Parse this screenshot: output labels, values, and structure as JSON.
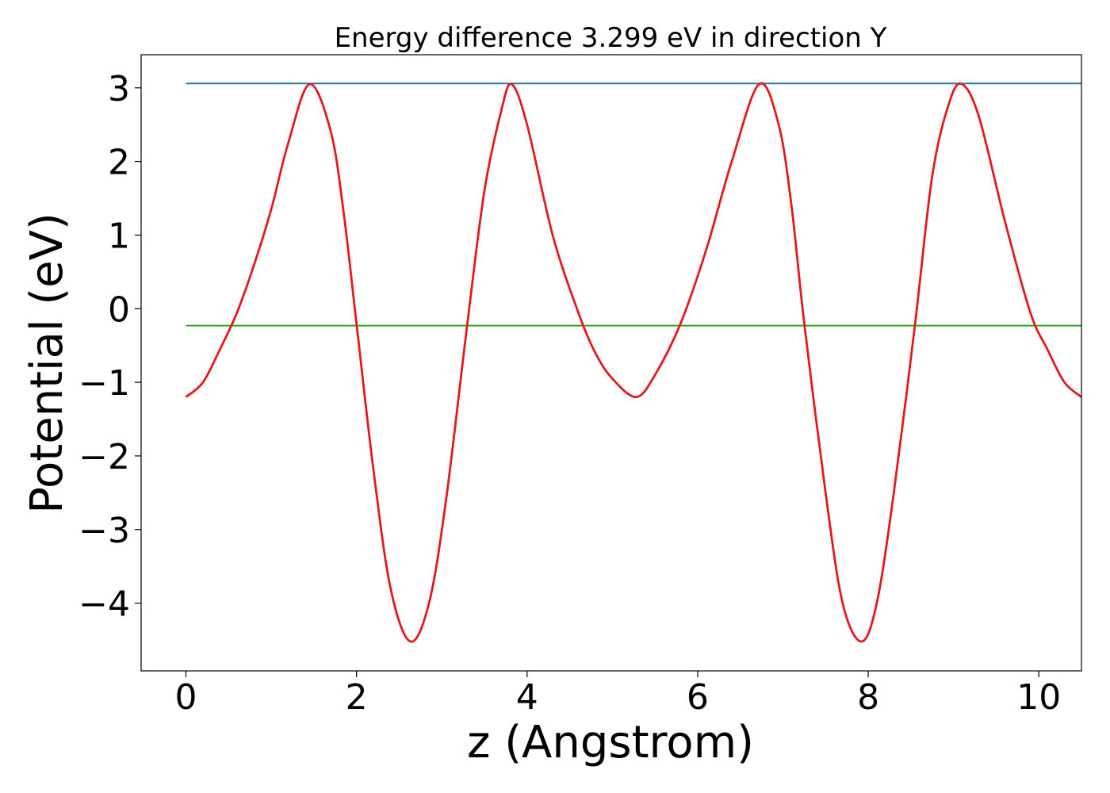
{
  "chart_data": {
    "type": "line",
    "title": "Energy difference 3.299 eV in direction Y",
    "xlabel": "z (Angstrom)",
    "ylabel": "Potential (eV)",
    "xlim": [
      -0.525,
      10.5
    ],
    "ylim": [
      -4.92,
      3.45
    ],
    "x_ticks": [
      0,
      2,
      4,
      6,
      8,
      10
    ],
    "x_tick_labels": [
      "0",
      "2",
      "4",
      "6",
      "8",
      "10"
    ],
    "y_ticks": [
      -4,
      -3,
      -2,
      -1,
      0,
      1,
      2,
      3
    ],
    "y_tick_labels": [
      "−4",
      "−3",
      "−2",
      "−1",
      "0",
      "1",
      "2",
      "3"
    ],
    "grid": false,
    "colors": {
      "potential": "#e31a1c",
      "upper": "#1f78b4",
      "lower": "#33a02c"
    },
    "series": [
      {
        "x": [
          0,
          0.2,
          0.4,
          0.6,
          0.8,
          1.0,
          1.2,
          1.45,
          1.7,
          1.85,
          2.0,
          2.2,
          2.4,
          2.63,
          2.85,
          3.05,
          3.3,
          3.5,
          3.7,
          3.82,
          4.0,
          4.3,
          4.6,
          4.8,
          5.0,
          5.28,
          5.5,
          5.8,
          6.1,
          6.4,
          6.72,
          6.95,
          7.1,
          7.25,
          7.5,
          7.7,
          7.92,
          8.1,
          8.3,
          8.55,
          8.75,
          8.95,
          9.1,
          9.3,
          9.6,
          9.9,
          10.1,
          10.3,
          10.5
        ],
        "values": [
          -1.2,
          -1.0,
          -0.55,
          -0.05,
          0.6,
          1.35,
          2.25,
          3.05,
          2.4,
          1.3,
          -0.2,
          -2.2,
          -3.8,
          -4.52,
          -4.0,
          -2.6,
          -0.2,
          1.6,
          2.7,
          3.05,
          2.5,
          1.0,
          -0.05,
          -0.6,
          -0.95,
          -1.2,
          -0.9,
          -0.2,
          0.8,
          2.0,
          3.05,
          2.5,
          1.4,
          -0.2,
          -2.5,
          -4.0,
          -4.52,
          -4.0,
          -2.5,
          -0.2,
          1.8,
          2.8,
          3.05,
          2.6,
          1.2,
          -0.05,
          -0.55,
          -1.0,
          -1.2
        ]
      },
      {
        "x": [
          0,
          10.5
        ],
        "values": [
          3.06,
          3.06
        ]
      },
      {
        "x": [
          0,
          10.5
        ],
        "values": [
          -0.23,
          -0.23
        ]
      }
    ]
  }
}
